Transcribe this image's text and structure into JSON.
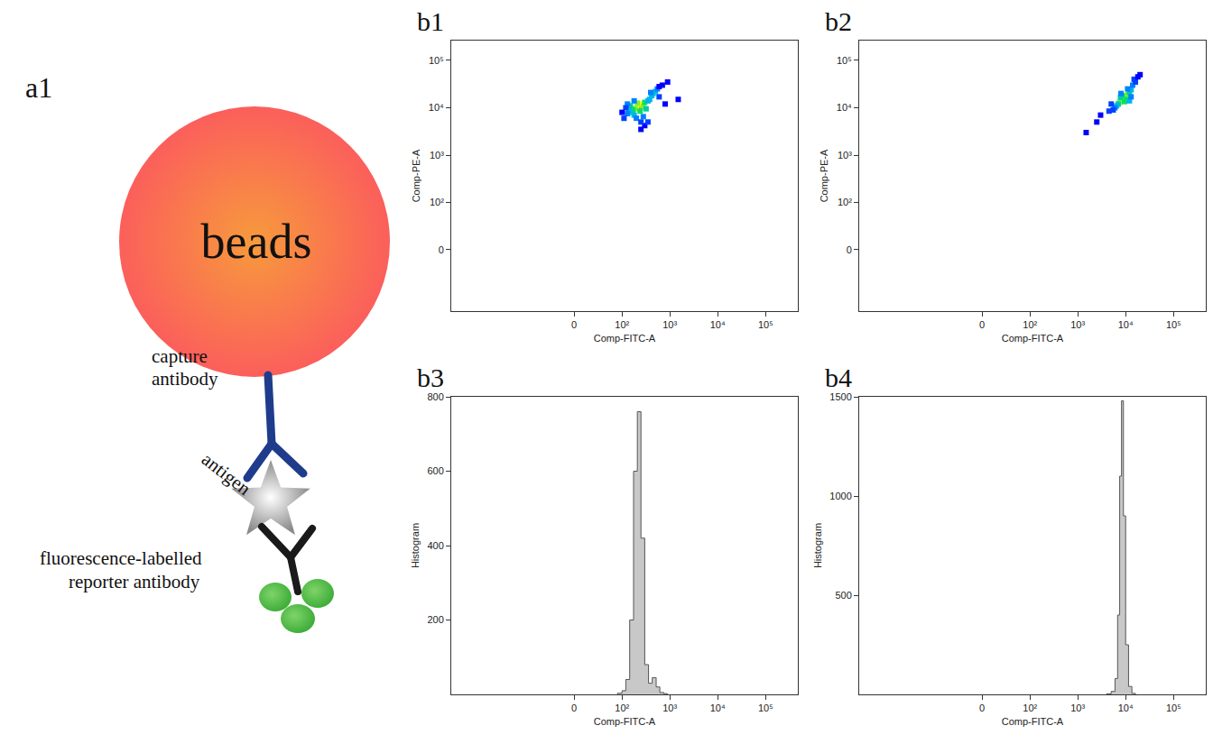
{
  "diagram": {
    "label": "a1",
    "beads": "beads",
    "capture_antibody": "capture antibody",
    "antigen": "antigen",
    "reporter_antibody": "fluorescence-labelled reporter antibody"
  },
  "chart_data": [
    {
      "panel_label": "b1",
      "type": "scatter",
      "marker": "density",
      "log": true,
      "grid": false,
      "xlabel": "Comp-FITC-A",
      "ylabel": "Comp-PE-A",
      "xlim": [
        -3700,
        470000
      ],
      "ylim": [
        -200,
        262144
      ],
      "xticks": [
        0,
        {
          "value": 100,
          "label": "10²"
        },
        {
          "value": 1000,
          "label": "10³"
        },
        {
          "value": 10000,
          "label": "10⁴"
        },
        {
          "value": 100000,
          "label": "10⁵"
        }
      ],
      "yticks": [
        0,
        {
          "value": 100,
          "label": "10²"
        },
        {
          "value": 1000,
          "label": "10³"
        },
        {
          "value": 10000,
          "label": "10⁴"
        },
        {
          "value": 100000,
          "label": "10⁵"
        }
      ],
      "x": [
        230,
        220,
        250,
        200,
        260,
        190,
        280,
        210,
        170,
        300,
        240,
        160,
        320,
        150,
        350,
        180,
        140,
        380,
        130,
        200,
        450,
        500,
        420,
        550,
        400,
        130,
        280,
        120,
        600,
        700,
        900,
        1500,
        250,
        300,
        110,
        180,
        800,
        100,
        350,
        600,
        250
      ],
      "y": [
        11000,
        10500,
        11500,
        10000,
        12000,
        9500,
        10500,
        12500,
        9000,
        13000,
        8500,
        8000,
        9500,
        11000,
        14000,
        7000,
        9000,
        15000,
        7500,
        6000,
        20000,
        22000,
        18000,
        25000,
        21000,
        12000,
        6500,
        10000,
        17000,
        30000,
        35000,
        15000,
        3500,
        4200,
        6000,
        14000,
        12000,
        8000,
        5000,
        28000,
        5000
      ],
      "density": [
        10,
        9,
        9,
        8,
        8,
        7,
        7,
        7,
        6,
        6,
        6,
        5,
        5,
        5,
        4,
        4,
        4,
        4,
        3,
        3,
        5,
        4,
        4,
        3,
        3,
        3,
        3,
        2,
        2,
        1,
        1,
        1,
        1,
        1,
        2,
        3,
        1,
        1,
        2,
        1,
        2
      ]
    },
    {
      "panel_label": "b2",
      "type": "scatter",
      "marker": "density",
      "log": true,
      "grid": false,
      "xlabel": "Comp-FITC-A",
      "ylabel": "Comp-PE-A",
      "xlim": [
        -3700,
        470000
      ],
      "ylim": [
        -200,
        262144
      ],
      "xticks": [
        0,
        {
          "value": 100,
          "label": "10²"
        },
        {
          "value": 1000,
          "label": "10³"
        },
        {
          "value": 10000,
          "label": "10⁴"
        },
        {
          "value": 100000,
          "label": "10⁵"
        }
      ],
      "yticks": [
        0,
        {
          "value": 100,
          "label": "10²"
        },
        {
          "value": 1000,
          "label": "10³"
        },
        {
          "value": 10000,
          "label": "10⁴"
        },
        {
          "value": 100000,
          "label": "10⁵"
        }
      ],
      "x": [
        9000,
        8500,
        9500,
        8000,
        10000,
        7500,
        11000,
        8500,
        9500,
        7000,
        12000,
        6500,
        13000,
        10500,
        7800,
        14000,
        15000,
        6000,
        5500,
        12000,
        16000,
        3000,
        2500,
        1500,
        4500,
        18000,
        11000,
        8000,
        5000,
        20000,
        13000
      ],
      "y": [
        16000,
        15000,
        17000,
        14000,
        18000,
        13000,
        19000,
        18000,
        13500,
        12000,
        21000,
        11000,
        24000,
        15000,
        16500,
        30000,
        40000,
        10000,
        9000,
        14000,
        35000,
        7000,
        5000,
        3000,
        8500,
        45000,
        25000,
        20000,
        12000,
        50000,
        17000
      ],
      "density": [
        10,
        9,
        9,
        8,
        8,
        7,
        7,
        6,
        6,
        5,
        5,
        4,
        4,
        6,
        5,
        3,
        2,
        3,
        2,
        4,
        2,
        1,
        1,
        1,
        2,
        1,
        3,
        3,
        2,
        1,
        3
      ]
    },
    {
      "panel_label": "b3",
      "type": "histogram",
      "log": "x",
      "grid": false,
      "color": "#c8c8c8",
      "xlabel": "Comp-FITC-A",
      "ylabel": "Histogram",
      "xlim": [
        -3700,
        470000
      ],
      "ylim": [
        0,
        800
      ],
      "xticks": [
        0,
        {
          "value": 100,
          "label": "10²"
        },
        {
          "value": 1000,
          "label": "10³"
        },
        {
          "value": 10000,
          "label": "10⁴"
        },
        {
          "value": 100000,
          "label": "10⁵"
        }
      ],
      "yticks": [
        200,
        400,
        600,
        800
      ],
      "bins": [
        80,
        100,
        120,
        145,
        175,
        210,
        250,
        300,
        360,
        430,
        520,
        620,
        750,
        900
      ],
      "values": [
        3,
        10,
        40,
        200,
        600,
        760,
        420,
        80,
        30,
        45,
        20,
        5,
        2
      ]
    },
    {
      "panel_label": "b4",
      "type": "histogram",
      "log": "x",
      "grid": false,
      "color": "#c8c8c8",
      "xlabel": "Comp-FITC-A",
      "ylabel": "Histogram",
      "xlim": [
        -3700,
        470000
      ],
      "ylim": [
        0,
        1500
      ],
      "xticks": [
        0,
        {
          "value": 100,
          "label": "10²"
        },
        {
          "value": 1000,
          "label": "10³"
        },
        {
          "value": 10000,
          "label": "10⁴"
        },
        {
          "value": 100000,
          "label": "10⁵"
        }
      ],
      "yticks": [
        500,
        1000,
        1500
      ],
      "bins": [
        4000,
        5000,
        6000,
        6800,
        7500,
        8200,
        9000,
        10000,
        11500,
        13500,
        16000
      ],
      "values": [
        3,
        15,
        80,
        400,
        1100,
        1480,
        900,
        250,
        40,
        5
      ]
    }
  ]
}
